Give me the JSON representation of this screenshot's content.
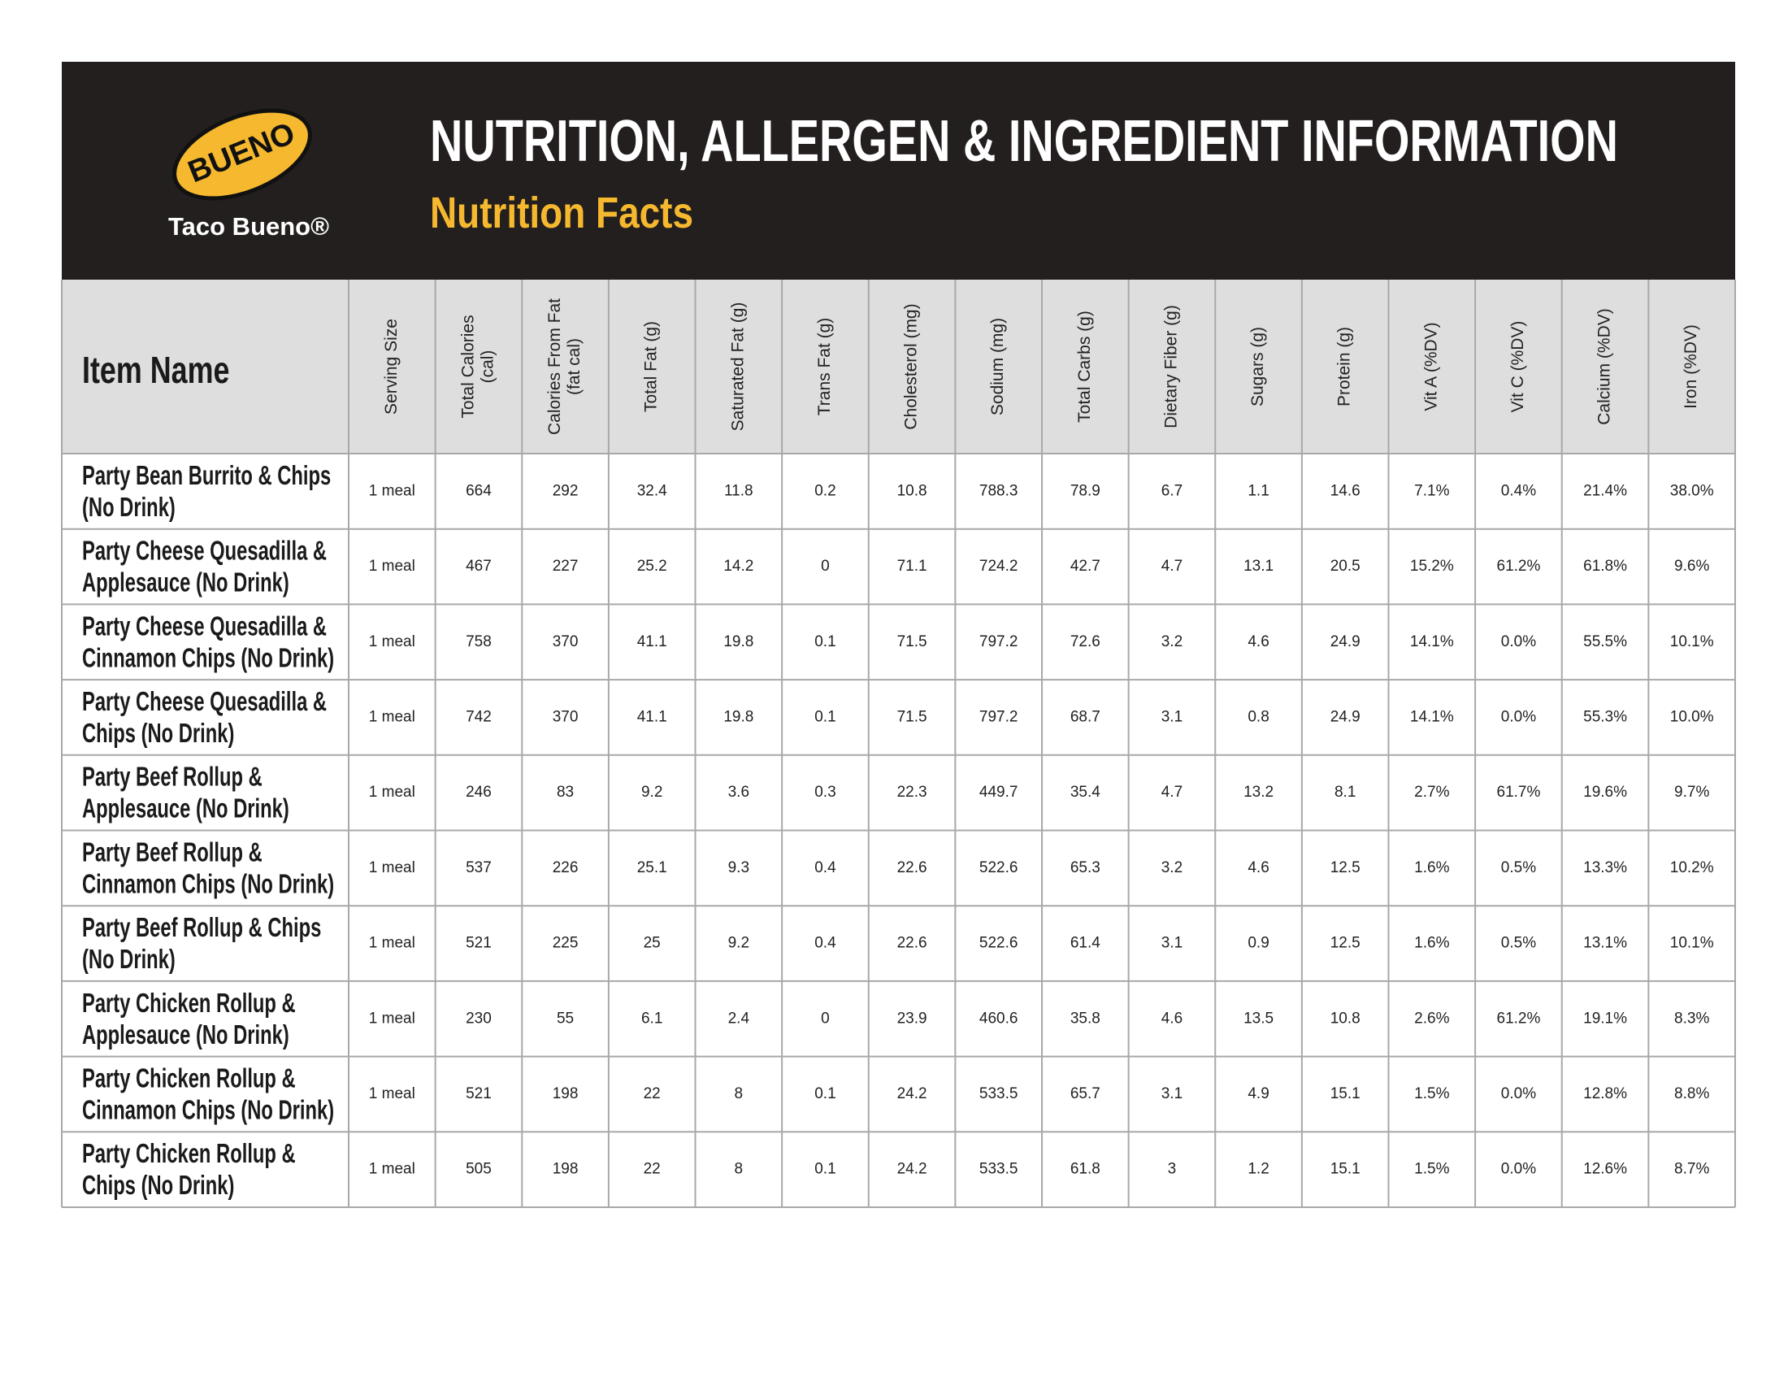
{
  "header": {
    "title": "NUTRITION, ALLERGEN & INGREDIENT INFORMATION",
    "subtitle": "Nutrition Facts"
  },
  "logo": {
    "badge": "BUENO",
    "name": "Taco Bueno®"
  },
  "table": {
    "item_header": "Item Name",
    "columns": [
      [
        "Serving Size"
      ],
      [
        "Total Calories",
        "(cal)"
      ],
      [
        "Calories From Fat",
        "(fat cal)"
      ],
      [
        "Total Fat (g)"
      ],
      [
        "Saturated Fat (g)"
      ],
      [
        "Trans Fat (g)"
      ],
      [
        "Cholesterol (mg)"
      ],
      [
        "Sodium (mg)"
      ],
      [
        "Total Carbs (g)"
      ],
      [
        "Dietary Fiber (g)"
      ],
      [
        "Sugars (g)"
      ],
      [
        "Protein (g)"
      ],
      [
        "Vit A (%DV)"
      ],
      [
        "Vit C (%DV)"
      ],
      [
        "Calcium (%DV)"
      ],
      [
        "Iron (%DV)"
      ]
    ],
    "rows": [
      {
        "name": [
          "Party Bean Burrito & Chips",
          "(No Drink)"
        ],
        "cells": [
          "1 meal",
          "664",
          "292",
          "32.4",
          "11.8",
          "0.2",
          "10.8",
          "788.3",
          "78.9",
          "6.7",
          "1.1",
          "14.6",
          "7.1%",
          "0.4%",
          "21.4%",
          "38.0%"
        ]
      },
      {
        "name": [
          "Party Cheese Quesadilla &",
          "Applesauce (No Drink)"
        ],
        "cells": [
          "1 meal",
          "467",
          "227",
          "25.2",
          "14.2",
          "0",
          "71.1",
          "724.2",
          "42.7",
          "4.7",
          "13.1",
          "20.5",
          "15.2%",
          "61.2%",
          "61.8%",
          "9.6%"
        ]
      },
      {
        "name": [
          "Party Cheese Quesadilla &",
          "Cinnamon Chips (No Drink)"
        ],
        "cells": [
          "1 meal",
          "758",
          "370",
          "41.1",
          "19.8",
          "0.1",
          "71.5",
          "797.2",
          "72.6",
          "3.2",
          "4.6",
          "24.9",
          "14.1%",
          "0.0%",
          "55.5%",
          "10.1%"
        ]
      },
      {
        "name": [
          "Party Cheese Quesadilla &",
          "Chips (No Drink)"
        ],
        "cells": [
          "1 meal",
          "742",
          "370",
          "41.1",
          "19.8",
          "0.1",
          "71.5",
          "797.2",
          "68.7",
          "3.1",
          "0.8",
          "24.9",
          "14.1%",
          "0.0%",
          "55.3%",
          "10.0%"
        ]
      },
      {
        "name": [
          "Party Beef Rollup &",
          "Applesauce (No Drink)"
        ],
        "cells": [
          "1 meal",
          "246",
          "83",
          "9.2",
          "3.6",
          "0.3",
          "22.3",
          "449.7",
          "35.4",
          "4.7",
          "13.2",
          "8.1",
          "2.7%",
          "61.7%",
          "19.6%",
          "9.7%"
        ]
      },
      {
        "name": [
          "Party Beef Rollup &",
          "Cinnamon Chips (No Drink)"
        ],
        "cells": [
          "1 meal",
          "537",
          "226",
          "25.1",
          "9.3",
          "0.4",
          "22.6",
          "522.6",
          "65.3",
          "3.2",
          "4.6",
          "12.5",
          "1.6%",
          "0.5%",
          "13.3%",
          "10.2%"
        ]
      },
      {
        "name": [
          "Party Beef Rollup & Chips",
          "(No Drink)"
        ],
        "cells": [
          "1 meal",
          "521",
          "225",
          "25",
          "9.2",
          "0.4",
          "22.6",
          "522.6",
          "61.4",
          "3.1",
          "0.9",
          "12.5",
          "1.6%",
          "0.5%",
          "13.1%",
          "10.1%"
        ]
      },
      {
        "name": [
          "Party Chicken Rollup &",
          "Applesauce (No Drink)"
        ],
        "cells": [
          "1 meal",
          "230",
          "55",
          "6.1",
          "2.4",
          "0",
          "23.9",
          "460.6",
          "35.8",
          "4.6",
          "13.5",
          "10.8",
          "2.6%",
          "61.2%",
          "19.1%",
          "8.3%"
        ]
      },
      {
        "name": [
          "Party Chicken Rollup &",
          "Cinnamon Chips (No Drink)"
        ],
        "cells": [
          "1 meal",
          "521",
          "198",
          "22",
          "8",
          "0.1",
          "24.2",
          "533.5",
          "65.7",
          "3.1",
          "4.9",
          "15.1",
          "1.5%",
          "0.0%",
          "12.8%",
          "8.8%"
        ]
      },
      {
        "name": [
          "Party Chicken Rollup &",
          "Chips (No Drink)"
        ],
        "cells": [
          "1 meal",
          "505",
          "198",
          "22",
          "8",
          "0.1",
          "24.2",
          "533.5",
          "61.8",
          "3",
          "1.2",
          "15.1",
          "1.5%",
          "0.0%",
          "12.6%",
          "8.7%"
        ]
      }
    ]
  }
}
